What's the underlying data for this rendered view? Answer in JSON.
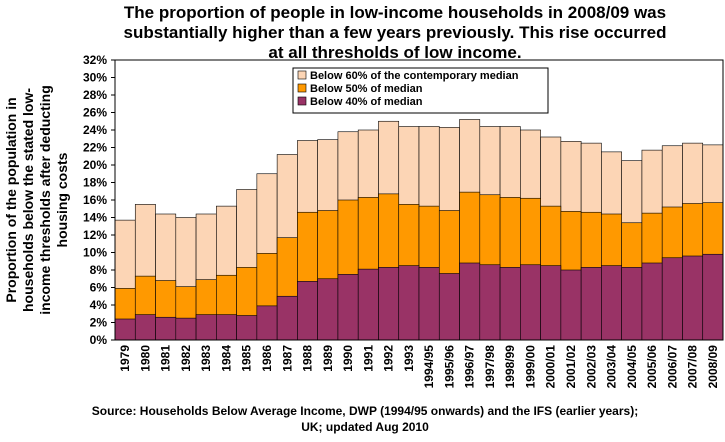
{
  "chart_data": {
    "type": "bar",
    "title": [
      "The proportion of people in low-income households in 2008/09 was",
      "substantially higher than a few years previously.  This rise occurred",
      "at all thresholds of low income."
    ],
    "y_label": [
      "Proportion of the population in",
      "households below the stated low-",
      "income thresholds after deducting",
      "housing costs"
    ],
    "source": [
      "Source: Households Below Average Income, DWP (1994/95 onwards) and the IFS (earlier years);",
      "UK; updated Aug 2010"
    ],
    "categories": [
      "1979",
      "1980",
      "1981",
      "1982",
      "1983",
      "1984",
      "1985",
      "1986",
      "1987",
      "1988",
      "1989",
      "1990",
      "1991",
      "1992",
      "1993",
      "1994/95",
      "1995/96",
      "1996/97",
      "1997/98",
      "1998/99",
      "1999/00",
      "2000/01",
      "2001/02",
      "2002/03",
      "2003/04",
      "2004/05",
      "2005/06",
      "2006/07",
      "2007/08",
      "2008/09"
    ],
    "series": [
      {
        "name": "Below 60% of the contemporary median",
        "color": "#fcd5b5",
        "values": [
          13.7,
          15.5,
          14.4,
          14.0,
          14.4,
          15.3,
          17.2,
          19.0,
          21.2,
          22.8,
          22.9,
          23.8,
          24.0,
          25.0,
          24.4,
          24.4,
          24.3,
          25.2,
          24.4,
          24.4,
          24.0,
          23.2,
          22.7,
          22.5,
          21.5,
          20.5,
          21.7,
          22.2,
          22.5,
          22.3
        ]
      },
      {
        "name": "Below 50% of median",
        "color": "#ff9900",
        "values": [
          5.9,
          7.3,
          6.8,
          6.1,
          6.9,
          7.4,
          8.3,
          9.9,
          11.7,
          14.6,
          14.8,
          16.0,
          16.3,
          16.7,
          15.5,
          15.3,
          14.8,
          16.9,
          16.6,
          16.3,
          16.2,
          15.3,
          14.7,
          14.6,
          14.4,
          13.4,
          14.5,
          15.2,
          15.6,
          15.7
        ]
      },
      {
        "name": "Below 40% of median",
        "color": "#993366",
        "values": [
          2.4,
          2.9,
          2.6,
          2.5,
          2.9,
          2.9,
          2.8,
          3.9,
          5.0,
          6.7,
          7.0,
          7.5,
          8.1,
          8.3,
          8.5,
          8.3,
          7.6,
          8.8,
          8.6,
          8.3,
          8.6,
          8.5,
          8.0,
          8.3,
          8.5,
          8.3,
          8.8,
          9.4,
          9.6,
          9.8
        ]
      }
    ],
    "ylim": [
      0,
      32
    ],
    "yticks": [
      {
        "value": 0,
        "label": "0%"
      },
      {
        "value": 2,
        "label": "2%"
      },
      {
        "value": 4,
        "label": "4%"
      },
      {
        "value": 6,
        "label": "6%"
      },
      {
        "value": 8,
        "label": "8%"
      },
      {
        "value": 10,
        "label": "10%"
      },
      {
        "value": 12,
        "label": "12%"
      },
      {
        "value": 14,
        "label": "14%"
      },
      {
        "value": 16,
        "label": "16%"
      },
      {
        "value": 18,
        "label": "18%"
      },
      {
        "value": 20,
        "label": "20%"
      },
      {
        "value": 22,
        "label": "22%"
      },
      {
        "value": 24,
        "label": "24%"
      },
      {
        "value": 26,
        "label": "26%"
      },
      {
        "value": 28,
        "label": "28%"
      },
      {
        "value": 30,
        "label": "30%"
      },
      {
        "value": 32,
        "label": "32%"
      }
    ],
    "grid": false,
    "legend": "top"
  }
}
